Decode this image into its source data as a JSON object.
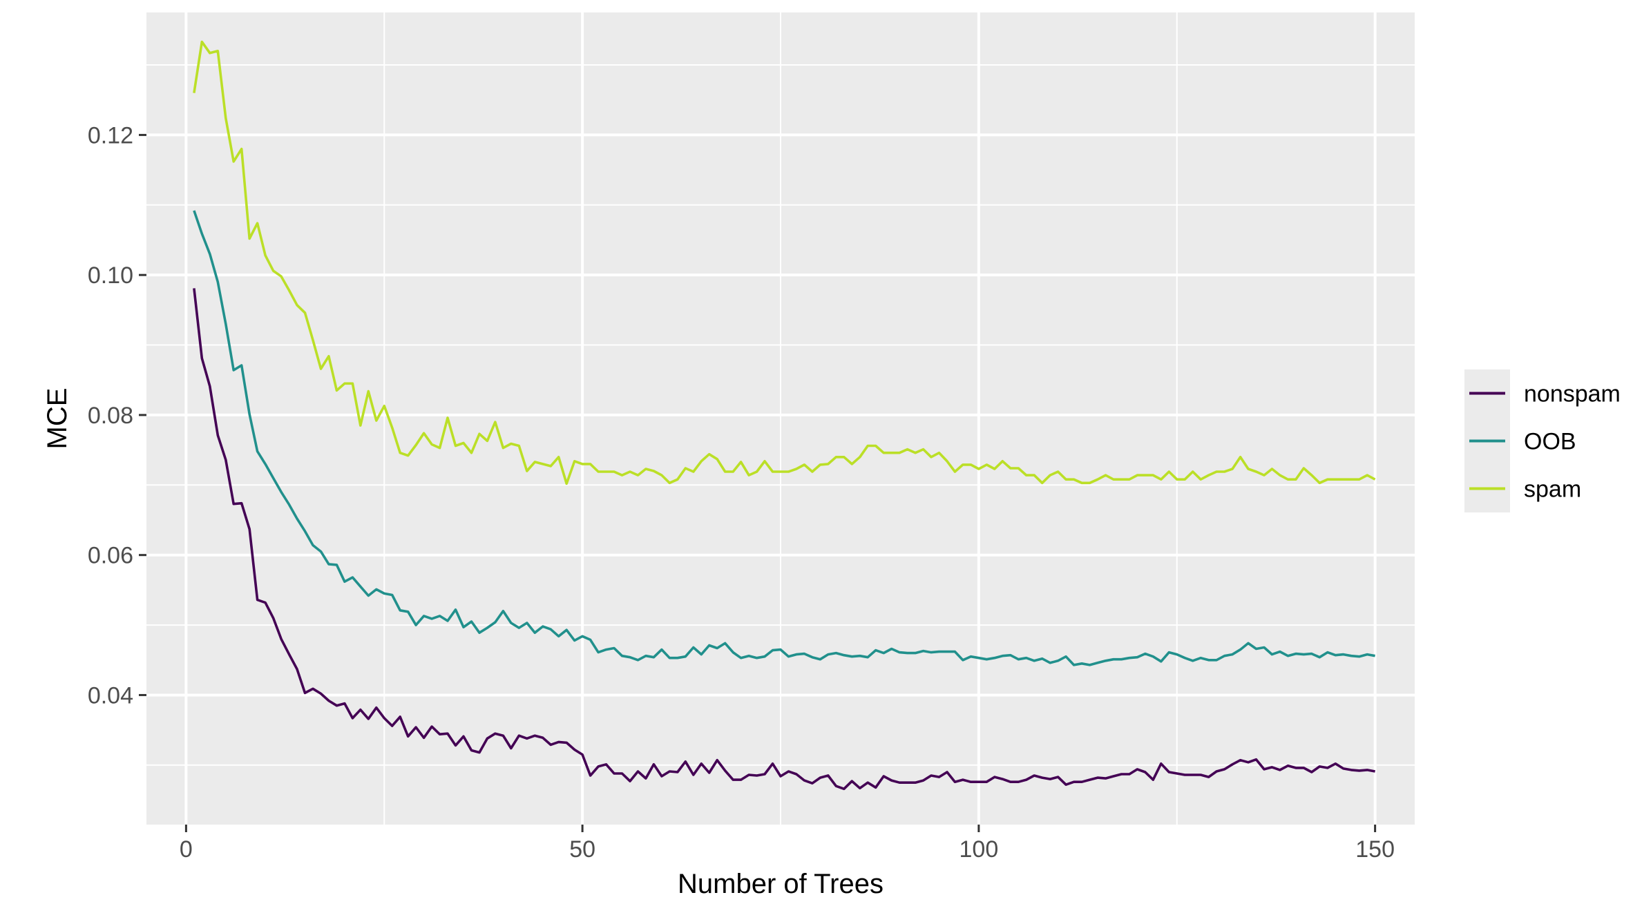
{
  "chart_data": {
    "type": "line",
    "title": "",
    "xlabel": "Number of Trees",
    "ylabel": "MCE",
    "xlim": [
      -5,
      155
    ],
    "ylim": [
      0.0215,
      0.1375
    ],
    "x_ticks": [
      0,
      50,
      100,
      150
    ],
    "x_tick_labels": [
      "0",
      "50",
      "100",
      "150"
    ],
    "y_ticks": [
      0.04,
      0.06,
      0.08,
      0.1,
      0.12
    ],
    "y_tick_labels": [
      "0.04",
      "0.06",
      "0.08",
      "0.10",
      "0.12"
    ],
    "x_minor_ticks": [
      25,
      75,
      125
    ],
    "y_minor_ticks": [
      0.03,
      0.05,
      0.07,
      0.09,
      0.11,
      0.13
    ],
    "grid": true,
    "legend_position": "right",
    "x": [
      1,
      2,
      3,
      4,
      5,
      6,
      7,
      8,
      9,
      10,
      11,
      12,
      13,
      14,
      15,
      16,
      17,
      18,
      19,
      20,
      21,
      22,
      23,
      24,
      25,
      26,
      27,
      28,
      29,
      30,
      31,
      32,
      33,
      34,
      35,
      36,
      37,
      38,
      39,
      40,
      41,
      42,
      43,
      44,
      45,
      46,
      47,
      48,
      49,
      50,
      51,
      52,
      53,
      54,
      55,
      56,
      57,
      58,
      59,
      60,
      61,
      62,
      63,
      64,
      65,
      66,
      67,
      68,
      69,
      70,
      71,
      72,
      73,
      74,
      75,
      76,
      77,
      78,
      79,
      80,
      81,
      82,
      83,
      84,
      85,
      86,
      87,
      88,
      89,
      90,
      91,
      92,
      93,
      94,
      95,
      96,
      97,
      98,
      99,
      100,
      101,
      102,
      103,
      104,
      105,
      106,
      107,
      108,
      109,
      110,
      111,
      112,
      113,
      114,
      115,
      116,
      117,
      118,
      119,
      120,
      121,
      122,
      123,
      124,
      125,
      126,
      127,
      128,
      129,
      130,
      131,
      132,
      133,
      134,
      135,
      136,
      137,
      138,
      139,
      140,
      141,
      142,
      143,
      144,
      145,
      146,
      147,
      148,
      149,
      150
    ],
    "series": [
      {
        "name": "nonspam",
        "color": "#440154",
        "values": [
          0.0981,
          0.0881,
          0.0841,
          0.0771,
          0.0736,
          0.0673,
          0.0674,
          0.0637,
          0.0536,
          0.0532,
          0.051,
          0.048,
          0.0458,
          0.0437,
          0.0403,
          0.0409,
          0.0402,
          0.0392,
          0.0385,
          0.0388,
          0.0367,
          0.0379,
          0.0366,
          0.0382,
          0.0367,
          0.0356,
          0.0369,
          0.0341,
          0.0354,
          0.0339,
          0.0355,
          0.0344,
          0.0345,
          0.0328,
          0.0341,
          0.0321,
          0.0318,
          0.0338,
          0.0345,
          0.0342,
          0.0324,
          0.0342,
          0.0338,
          0.0342,
          0.0339,
          0.0329,
          0.0333,
          0.0332,
          0.0322,
          0.0315,
          0.0285,
          0.0298,
          0.0301,
          0.0288,
          0.0288,
          0.0277,
          0.0291,
          0.0281,
          0.0301,
          0.0284,
          0.0291,
          0.029,
          0.0305,
          0.0286,
          0.0302,
          0.0289,
          0.0307,
          0.0292,
          0.0279,
          0.0279,
          0.0286,
          0.0285,
          0.0287,
          0.0302,
          0.0284,
          0.0291,
          0.0287,
          0.0278,
          0.0274,
          0.0282,
          0.0285,
          0.027,
          0.0266,
          0.0277,
          0.0267,
          0.0275,
          0.0268,
          0.0284,
          0.0278,
          0.0275,
          0.0275,
          0.0275,
          0.0278,
          0.0285,
          0.0283,
          0.029,
          0.0276,
          0.0279,
          0.0276,
          0.0276,
          0.0276,
          0.0283,
          0.028,
          0.0276,
          0.0276,
          0.0279,
          0.0285,
          0.0282,
          0.028,
          0.0283,
          0.0272,
          0.0276,
          0.0276,
          0.0279,
          0.0282,
          0.0281,
          0.0284,
          0.0287,
          0.0287,
          0.0294,
          0.029,
          0.0279,
          0.0302,
          0.029,
          0.0288,
          0.0286,
          0.0286,
          0.0286,
          0.0283,
          0.0291,
          0.0294,
          0.0301,
          0.0307,
          0.0304,
          0.0308,
          0.0294,
          0.0297,
          0.0293,
          0.0299,
          0.0296,
          0.0296,
          0.029,
          0.0298,
          0.0296,
          0.0302,
          0.0295,
          0.0293,
          0.0292,
          0.0293,
          0.0291
        ]
      },
      {
        "name": "OOB",
        "color": "#21908C",
        "values": [
          0.1092,
          0.1059,
          0.103,
          0.099,
          0.093,
          0.0864,
          0.0871,
          0.0801,
          0.0748,
          0.073,
          0.071,
          0.069,
          0.0672,
          0.0652,
          0.0634,
          0.0614,
          0.0605,
          0.0587,
          0.0586,
          0.0562,
          0.0568,
          0.0555,
          0.0542,
          0.0551,
          0.0545,
          0.0543,
          0.0521,
          0.0519,
          0.05,
          0.0513,
          0.0509,
          0.0513,
          0.0506,
          0.0522,
          0.0497,
          0.0505,
          0.0489,
          0.0496,
          0.0504,
          0.052,
          0.0503,
          0.0496,
          0.0503,
          0.0489,
          0.0498,
          0.0494,
          0.0484,
          0.0493,
          0.0478,
          0.0484,
          0.0479,
          0.0461,
          0.0465,
          0.0467,
          0.0456,
          0.0454,
          0.045,
          0.0456,
          0.0454,
          0.0465,
          0.0453,
          0.0453,
          0.0455,
          0.0468,
          0.0458,
          0.0471,
          0.0467,
          0.0474,
          0.0461,
          0.0453,
          0.0456,
          0.0453,
          0.0455,
          0.0464,
          0.0465,
          0.0455,
          0.0458,
          0.0459,
          0.0454,
          0.0451,
          0.0458,
          0.046,
          0.0457,
          0.0455,
          0.0456,
          0.0454,
          0.0464,
          0.046,
          0.0466,
          0.0461,
          0.046,
          0.046,
          0.0463,
          0.0461,
          0.0462,
          0.0462,
          0.0462,
          0.045,
          0.0455,
          0.0453,
          0.0451,
          0.0453,
          0.0456,
          0.0457,
          0.0451,
          0.0453,
          0.0449,
          0.0452,
          0.0446,
          0.0449,
          0.0455,
          0.0443,
          0.0445,
          0.0443,
          0.0446,
          0.0449,
          0.0451,
          0.0451,
          0.0453,
          0.0454,
          0.0459,
          0.0455,
          0.0448,
          0.0461,
          0.0458,
          0.0453,
          0.0449,
          0.0453,
          0.045,
          0.045,
          0.0456,
          0.0458,
          0.0465,
          0.0474,
          0.0466,
          0.0468,
          0.0458,
          0.0462,
          0.0456,
          0.0459,
          0.0458,
          0.0459,
          0.0454,
          0.0461,
          0.0457,
          0.0458,
          0.0456,
          0.0455,
          0.0458,
          0.0456
        ]
      },
      {
        "name": "spam",
        "color": "#BBDF27",
        "values": [
          0.126,
          0.1333,
          0.1317,
          0.132,
          0.1224,
          0.1162,
          0.118,
          0.1052,
          0.1074,
          0.1028,
          0.1006,
          0.0998,
          0.0978,
          0.0957,
          0.0946,
          0.0907,
          0.0866,
          0.0884,
          0.0835,
          0.0845,
          0.0845,
          0.0785,
          0.0834,
          0.0792,
          0.0813,
          0.0782,
          0.0746,
          0.0742,
          0.0757,
          0.0774,
          0.0758,
          0.0753,
          0.0796,
          0.0756,
          0.076,
          0.0746,
          0.0773,
          0.0763,
          0.079,
          0.0753,
          0.0759,
          0.0756,
          0.072,
          0.0733,
          0.073,
          0.0727,
          0.074,
          0.0702,
          0.0734,
          0.073,
          0.073,
          0.0719,
          0.0719,
          0.0719,
          0.0714,
          0.0719,
          0.0714,
          0.0723,
          0.072,
          0.0714,
          0.0703,
          0.0708,
          0.0724,
          0.0719,
          0.0734,
          0.0744,
          0.0737,
          0.0719,
          0.0719,
          0.0733,
          0.0714,
          0.0719,
          0.0734,
          0.0719,
          0.0719,
          0.0719,
          0.0723,
          0.0729,
          0.0719,
          0.0729,
          0.073,
          0.074,
          0.074,
          0.073,
          0.074,
          0.0756,
          0.0756,
          0.0746,
          0.0746,
          0.0746,
          0.0751,
          0.0746,
          0.0751,
          0.074,
          0.0746,
          0.0734,
          0.0719,
          0.0729,
          0.0729,
          0.0723,
          0.0729,
          0.0723,
          0.0734,
          0.0724,
          0.0724,
          0.0714,
          0.0714,
          0.0703,
          0.0714,
          0.0719,
          0.0708,
          0.0708,
          0.0703,
          0.0703,
          0.0708,
          0.0714,
          0.0708,
          0.0708,
          0.0708,
          0.0714,
          0.0714,
          0.0714,
          0.0708,
          0.0719,
          0.0708,
          0.0708,
          0.0719,
          0.0708,
          0.0714,
          0.0719,
          0.0719,
          0.0723,
          0.074,
          0.0723,
          0.0719,
          0.0714,
          0.0723,
          0.0714,
          0.0708,
          0.0708,
          0.0724,
          0.0714,
          0.0703,
          0.0708,
          0.0708,
          0.0708,
          0.0708,
          0.0708,
          0.0714,
          0.0708
        ]
      }
    ]
  }
}
